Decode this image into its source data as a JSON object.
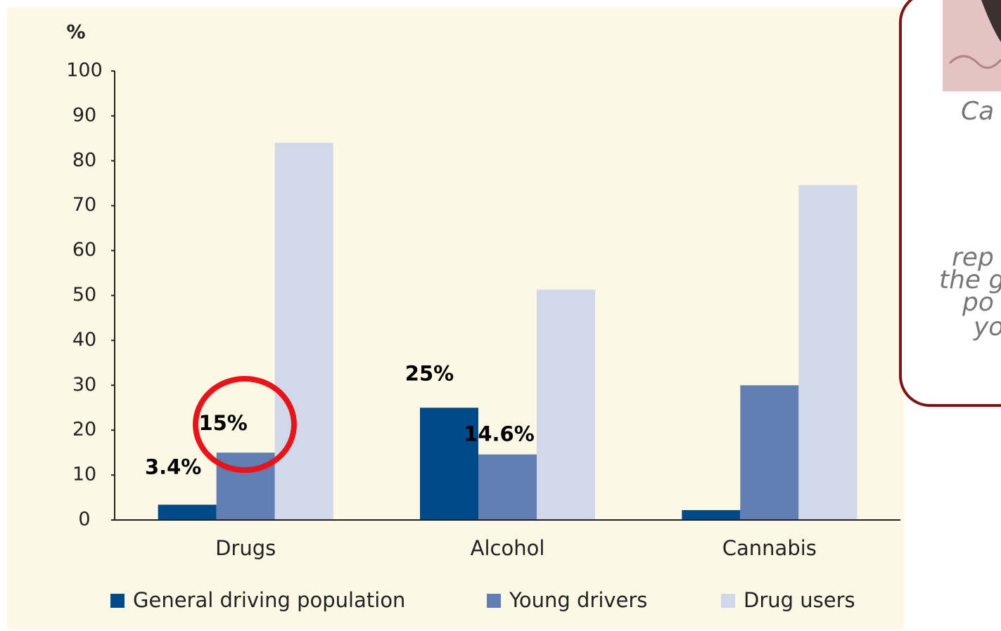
{
  "chart_data": {
    "type": "bar",
    "y_label": "%",
    "categories": [
      "Drugs",
      "Alcohol",
      "Cannabis"
    ],
    "series": [
      {
        "name": "General driving population",
        "color": "#004a8a",
        "values": [
          3.4,
          25,
          2.2
        ],
        "value_labels": [
          "3.4%",
          "25%",
          null
        ]
      },
      {
        "name": "Young drivers",
        "color": "#627fb3",
        "values": [
          15,
          14.6,
          30
        ],
        "value_labels": [
          "15%",
          "14.6%",
          null
        ]
      },
      {
        "name": "Drug users",
        "color": "#d1d8ea",
        "values": [
          84,
          51.3,
          74.6
        ],
        "value_labels": [
          null,
          null,
          null
        ]
      }
    ],
    "ylim": [
      0,
      100
    ],
    "yticks": [
      0,
      10,
      20,
      30,
      40,
      50,
      60,
      70,
      80,
      90,
      100
    ],
    "legend": "bottom"
  },
  "callout": {
    "lines": [
      "Ca",
      "rep",
      "the g",
      "po",
      "yo"
    ]
  }
}
